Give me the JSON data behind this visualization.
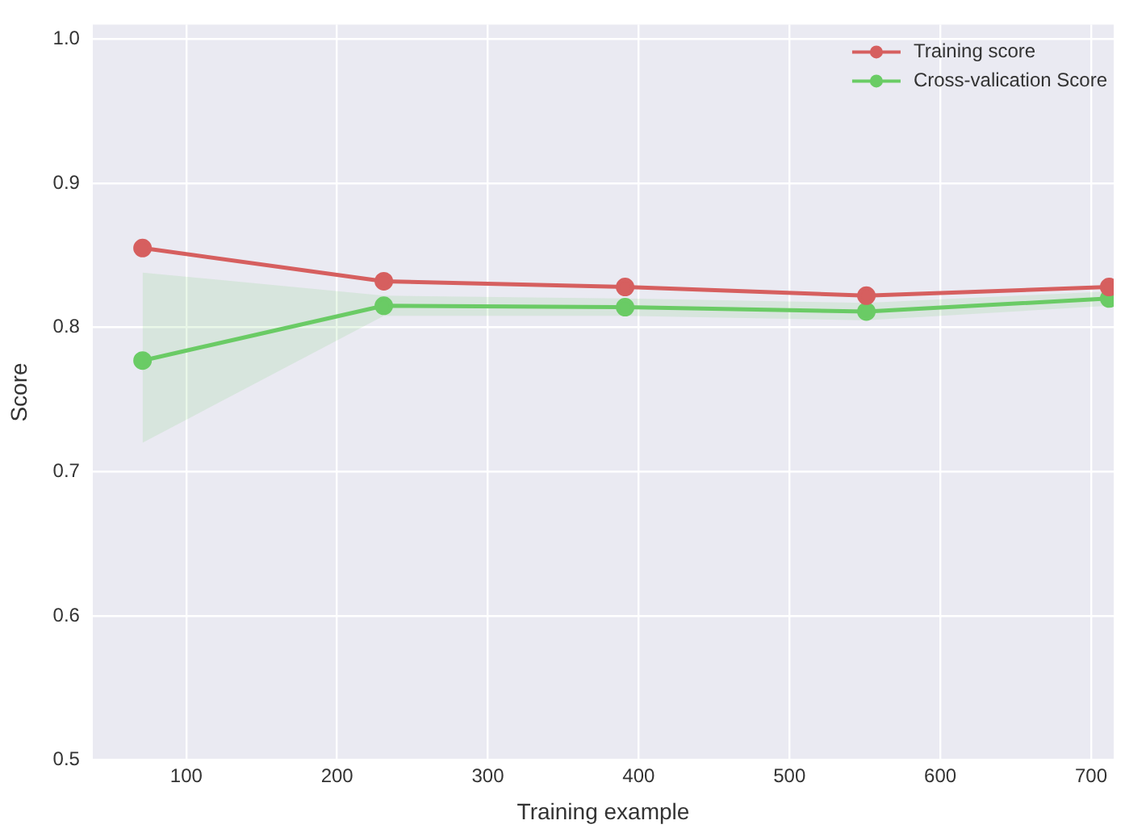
{
  "chart_data": {
    "type": "line",
    "xlabel": "Training example",
    "ylabel": "Score",
    "x": [
      71,
      231,
      391,
      551,
      712
    ],
    "series": [
      {
        "name": "Training score",
        "color": "#d65f5f",
        "values": [
          0.855,
          0.832,
          0.828,
          0.822,
          0.828
        ]
      },
      {
        "name": "Cross-valication Score",
        "color": "#6acc65",
        "values": [
          0.777,
          0.815,
          0.814,
          0.811,
          0.82
        ],
        "lower": [
          0.72,
          0.808,
          0.808,
          0.805,
          0.815
        ],
        "upper": [
          0.838,
          0.822,
          0.82,
          0.817,
          0.825
        ]
      }
    ],
    "xlim": [
      38,
      715
    ],
    "xticks": [
      100,
      200,
      300,
      400,
      500,
      600,
      700
    ],
    "ylim": [
      0.5,
      1.01
    ],
    "yticks": [
      0.5,
      0.6,
      0.7,
      0.8,
      0.9,
      {
        "value": 1,
        "label": "1.0"
      }
    ],
    "grid": true,
    "legend": "top right",
    "marker": "circle",
    "line_style": "solid"
  }
}
